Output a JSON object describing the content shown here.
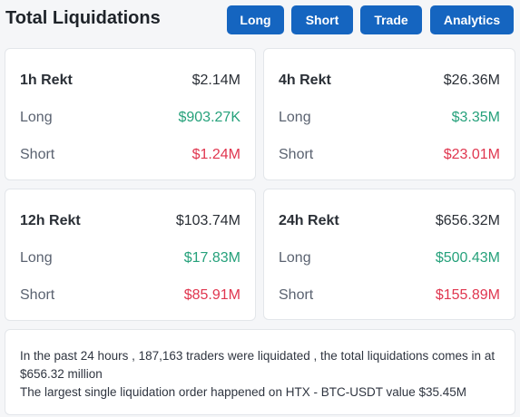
{
  "header": {
    "title": "Total Liquidations",
    "buttons": {
      "long": "Long",
      "short": "Short",
      "trade": "Trade",
      "analytics": "Analytics"
    }
  },
  "cards": {
    "h1": {
      "period": "1h Rekt",
      "total": "$2.14M",
      "long_label": "Long",
      "long_value": "$903.27K",
      "short_label": "Short",
      "short_value": "$1.24M"
    },
    "h4": {
      "period": "4h Rekt",
      "total": "$26.36M",
      "long_label": "Long",
      "long_value": "$3.35M",
      "short_label": "Short",
      "short_value": "$23.01M"
    },
    "h12": {
      "period": "12h Rekt",
      "total": "$103.74M",
      "long_label": "Long",
      "long_value": "$17.83M",
      "short_label": "Short",
      "short_value": "$85.91M"
    },
    "h24": {
      "period": "24h Rekt",
      "total": "$656.32M",
      "long_label": "Long",
      "long_value": "$500.43M",
      "short_label": "Short",
      "short_value": "$155.89M"
    }
  },
  "summary": {
    "line1": "In the past 24 hours , 187,163 traders were liquidated , the total liquidations comes in at $656.32 million",
    "line2": "The largest single liquidation order happened on HTX - BTC-USDT value $35.45M"
  },
  "colors": {
    "accent": "#1565c0",
    "long_green": "#26a17b",
    "short_red": "#e0364f"
  }
}
